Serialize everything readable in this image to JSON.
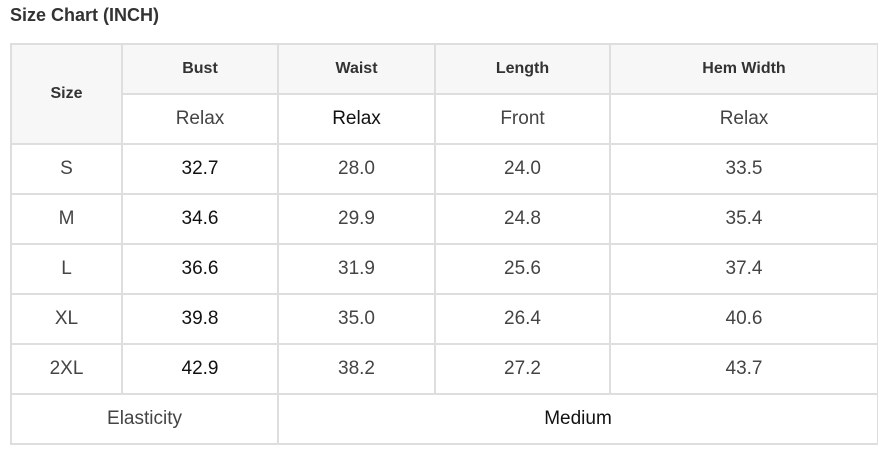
{
  "title": "Size Chart (INCH)",
  "header": {
    "size": "Size",
    "columns": [
      "Bust",
      "Waist",
      "Length",
      "Hem Width"
    ],
    "subheaders": [
      "Relax",
      "Relax",
      "Front",
      "Relax"
    ]
  },
  "rows": [
    {
      "size": "S",
      "values": [
        "32.7",
        "28.0",
        "24.0",
        "33.5"
      ]
    },
    {
      "size": "M",
      "values": [
        "34.6",
        "29.9",
        "24.8",
        "35.4"
      ]
    },
    {
      "size": "L",
      "values": [
        "36.6",
        "31.9",
        "25.6",
        "37.4"
      ]
    },
    {
      "size": "XL",
      "values": [
        "39.8",
        "35.0",
        "26.4",
        "40.6"
      ]
    },
    {
      "size": "2XL",
      "values": [
        "42.9",
        "38.2",
        "27.2",
        "43.7"
      ]
    }
  ],
  "footer": {
    "label": "Elasticity",
    "value": "Medium"
  }
}
